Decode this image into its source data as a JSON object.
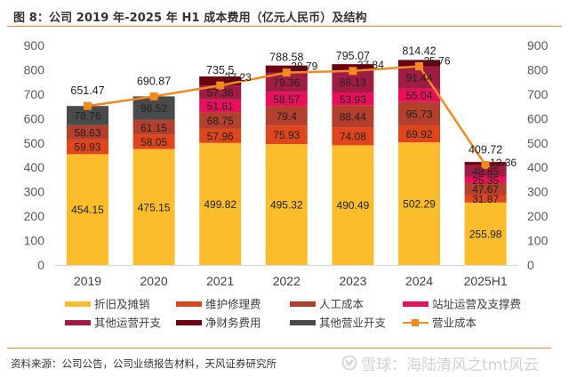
{
  "figure": {
    "title": "图 8：公司 2019 年-2025 年 H1 成本费用（亿元人民币）及结构",
    "source": "资料来源：公司公告，公司业绩报告材料，天风证券研究所",
    "watermark": "雪球：海陆清风之tmt风云",
    "watermark_icon": "snowball-logo-icon"
  },
  "colors": {
    "accent_rule": "#EE8A2C",
    "axis_text": "#595959",
    "label_text": "#222222",
    "axis_line": "#D9D9D9",
    "watermark": "#D2D2D2"
  },
  "chart_data": {
    "type": "bar",
    "stacked": true,
    "title": "",
    "xlabel": "",
    "ylabel": "",
    "y2label": "",
    "categories": [
      "2019",
      "2020",
      "2021",
      "2022",
      "2023",
      "2024",
      "2025H1"
    ],
    "ylim": [
      0,
      900
    ],
    "y2lim": [
      0,
      900
    ],
    "yticks": [
      0,
      100,
      200,
      300,
      400,
      500,
      600,
      700,
      800,
      900
    ],
    "y2ticks": [
      0,
      100,
      200,
      300,
      400,
      500,
      600,
      700,
      800,
      900
    ],
    "grid": false,
    "legend_position": "bottom",
    "data_labels": true,
    "series": [
      {
        "name": "折旧及摊销",
        "type": "bar",
        "color": "#FBBD2C",
        "values": [
          454.15,
          475.15,
          499.82,
          495.32,
          490.49,
          502.29,
          255.98
        ]
      },
      {
        "name": "维护修理费",
        "type": "bar",
        "color": "#E0461E",
        "values": [
          59.93,
          58.05,
          57.96,
          75.93,
          74.08,
          69.92,
          31.87
        ]
      },
      {
        "name": "人工成本",
        "type": "bar",
        "color": "#B33F2C",
        "values": [
          58.63,
          61.15,
          68.75,
          79.4,
          88.44,
          95.73,
          47.67
        ]
      },
      {
        "name": "站址运营及支撑费",
        "type": "bar",
        "color": "#E8105B",
        "values": [
          null,
          null,
          51.61,
          58.57,
          53.93,
          55.04,
          25.35
        ]
      },
      {
        "name": "其他运营开支",
        "type": "bar",
        "color": "#A01C43",
        "values": [
          null,
          null,
          57.36,
          79.36,
          88.13,
          91.44,
          48.85
        ]
      },
      {
        "name": "净财务费用",
        "type": "bar",
        "color": "#6B0011",
        "label_offset": "right",
        "values": [
          null,
          null,
          37.23,
          28.79,
          27.84,
          25.76,
          12.36
        ]
      },
      {
        "name": "其他营业开支",
        "type": "bar",
        "color": "#4A4A4A",
        "values": [
          78.76,
          96.52,
          null,
          null,
          null,
          null,
          null
        ]
      },
      {
        "name": "营业成本",
        "type": "line",
        "color": "#F28A1E",
        "marker": "square",
        "values": [
          651.47,
          690.87,
          735.5,
          788.58,
          795.07,
          814.42,
          409.72
        ]
      }
    ]
  }
}
